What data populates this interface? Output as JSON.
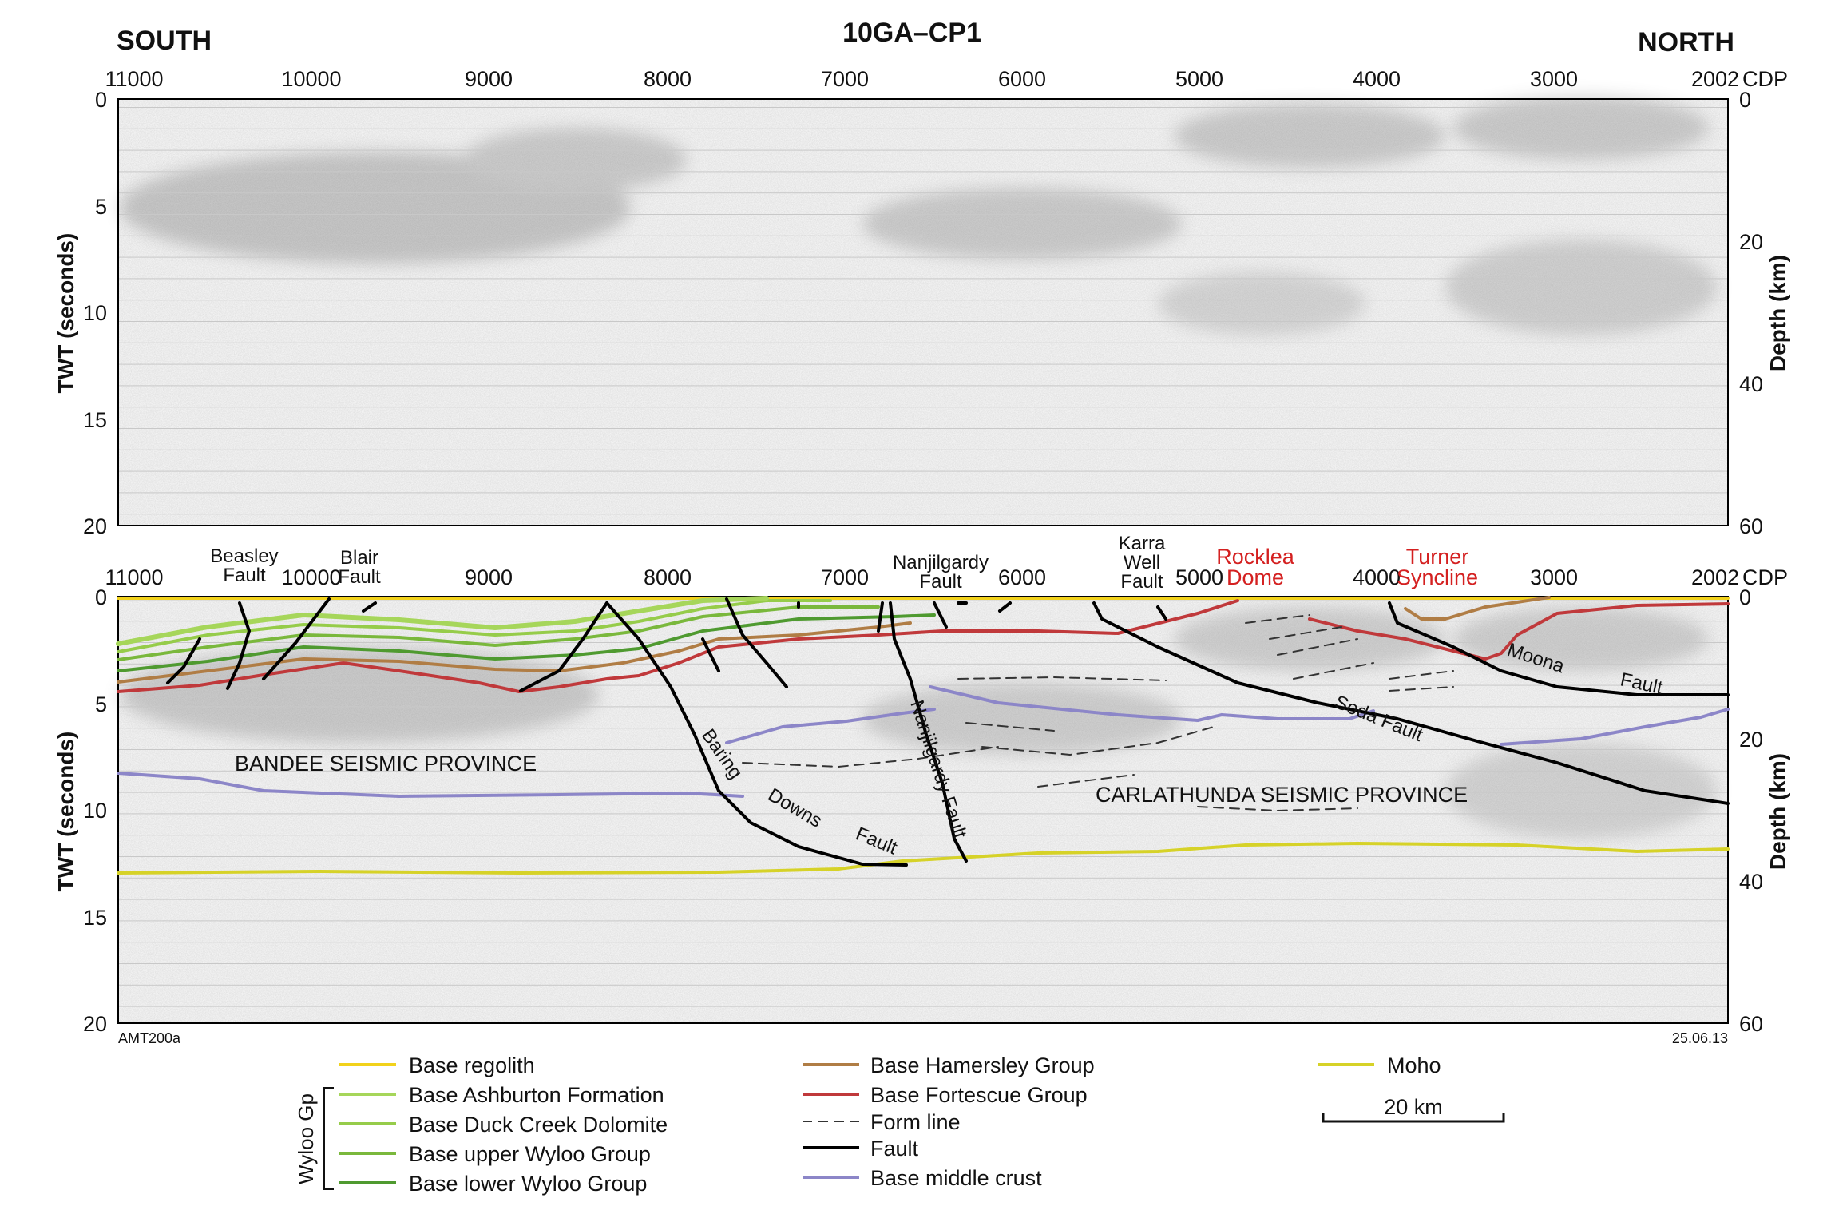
{
  "header": {
    "title": "10GA–CP1",
    "left": "SOUTH",
    "right": "NORTH"
  },
  "cdp": {
    "ticks": [
      "11000",
      "10000",
      "9000",
      "8000",
      "7000",
      "6000",
      "5000",
      "4000",
      "3000",
      "2002"
    ],
    "unit": "CDP"
  },
  "axes": {
    "twt_label": "TWT (seconds)",
    "twt_ticks": [
      "0",
      "5",
      "10",
      "15",
      "20"
    ],
    "depth_label": "Depth (km)",
    "depth_ticks": [
      "0",
      "20",
      "40",
      "60"
    ]
  },
  "lower_panel": {
    "faults_top": [
      {
        "id": "beasley",
        "lines": [
          "Beasley",
          "Fault"
        ]
      },
      {
        "id": "blair",
        "lines": [
          "Blair",
          "Fault"
        ]
      },
      {
        "id": "nanjilgardy",
        "lines": [
          "Nanjilgardy",
          "Fault"
        ]
      },
      {
        "id": "karra",
        "lines": [
          "Karra",
          "Well",
          "Fault"
        ]
      }
    ],
    "structures": [
      {
        "id": "rocklea",
        "lines": [
          "Rocklea",
          "Dome"
        ]
      },
      {
        "id": "turner",
        "lines": [
          "Turner",
          "Syncline"
        ]
      }
    ],
    "provinces": [
      "BANDEE SEISMIC PROVINCE",
      "CARLATHUNDA SEISMIC PROVINCE"
    ],
    "fault_words": {
      "baring": "Baring",
      "downs": "Downs",
      "fault_bd": "Fault",
      "nanj_vertical": "Nanjilgardy Fault",
      "soda": "Soda Fault",
      "moona": "Moona",
      "fault_m": "Fault"
    }
  },
  "footer": {
    "left_code": "AMT200a",
    "date": "25.06.13"
  },
  "legend": {
    "group_label": "Wyloo Gp",
    "items": [
      {
        "label": "Base regolith",
        "color": "#f2d21b",
        "style": "solid"
      },
      {
        "label": "Base Ashburton Formation",
        "color": "#a6d65a",
        "style": "solid"
      },
      {
        "label": "Base Duck Creek Dolomite",
        "color": "#96cc4a",
        "style": "solid"
      },
      {
        "label": "Base upper Wyloo Group",
        "color": "#7ab83c",
        "style": "solid"
      },
      {
        "label": "Base lower Wyloo Group",
        "color": "#4f9a30",
        "style": "solid"
      },
      {
        "label": "Base Hamersley Group",
        "color": "#b07d45",
        "style": "solid"
      },
      {
        "label": "Base Fortescue Group",
        "color": "#c0393b",
        "style": "solid"
      },
      {
        "label": "Form line",
        "color": "#333333",
        "style": "dashed"
      },
      {
        "label": "Fault",
        "color": "#000000",
        "style": "solid"
      },
      {
        "label": "Base middle crust",
        "color": "#8c86c8",
        "style": "solid"
      },
      {
        "label": "Moho",
        "color": "#d6d228",
        "style": "solid"
      }
    ],
    "scale_label": "20 km"
  }
}
